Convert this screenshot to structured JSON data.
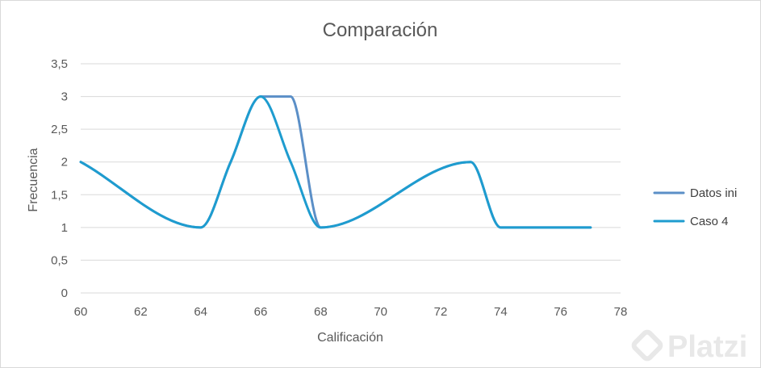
{
  "chart_data": {
    "type": "line",
    "title": "Comparación",
    "xlabel": "Calificación",
    "ylabel": "Frecuencia",
    "xlim": [
      60,
      78
    ],
    "ylim": [
      0,
      3.5
    ],
    "x_ticks": [
      "60",
      "62",
      "64",
      "66",
      "68",
      "70",
      "72",
      "74",
      "76",
      "78"
    ],
    "y_ticks": [
      "0",
      "0,5",
      "1",
      "1,5",
      "2",
      "2,5",
      "3",
      "3,5"
    ],
    "grid": true,
    "legend_position": "right",
    "series": [
      {
        "name": "Datos ini",
        "color": "#5b8fc7",
        "x": [
          60,
          64,
          65,
          66,
          67,
          68,
          73,
          74,
          75,
          77
        ],
        "y": [
          2,
          1,
          2,
          3,
          3,
          1,
          2,
          1,
          1,
          1
        ]
      },
      {
        "name": "Caso 4",
        "color": "#1e9ccf",
        "x": [
          60,
          64,
          65,
          66,
          67,
          68,
          73,
          74,
          75,
          77
        ],
        "y": [
          2,
          1,
          2,
          3,
          2,
          1,
          2,
          1,
          1,
          1
        ]
      }
    ]
  },
  "watermark": {
    "text": "Platzi",
    "icon": "platzi-logo-icon"
  }
}
